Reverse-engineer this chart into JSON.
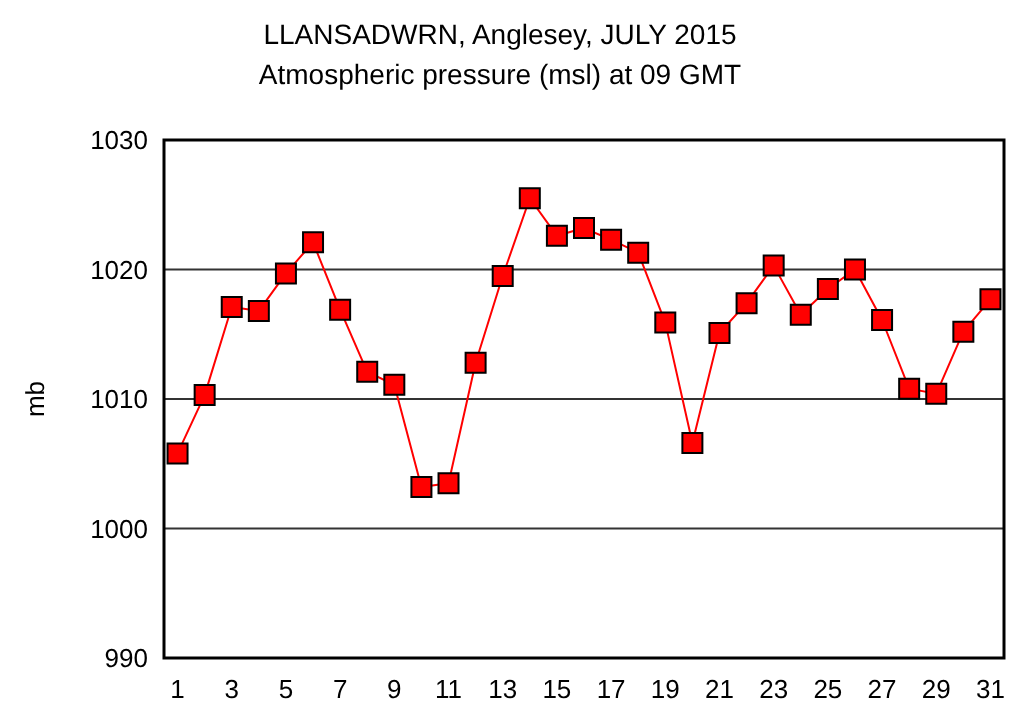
{
  "chart_data": {
    "type": "line",
    "title": "LLANSADWRN, Anglesey,  JULY 2015",
    "subtitle": "Atmospheric pressure  (msl) at 09 GMT",
    "ylabel": "mb",
    "x": [
      1,
      2,
      3,
      4,
      5,
      6,
      7,
      8,
      9,
      10,
      11,
      12,
      13,
      14,
      15,
      16,
      17,
      18,
      19,
      20,
      21,
      22,
      23,
      24,
      25,
      26,
      27,
      28,
      29,
      30,
      31
    ],
    "series": [
      {
        "color": "#ff0000",
        "values": [
          1005.8,
          1010.3,
          1017.1,
          1016.8,
          1019.7,
          1022.1,
          1016.9,
          1012.1,
          1011.1,
          1003.2,
          1003.5,
          1012.8,
          1019.5,
          1025.5,
          1022.6,
          1023.2,
          1022.3,
          1021.3,
          1015.9,
          1006.6,
          1015.1,
          1017.4,
          1020.3,
          1016.5,
          1018.5,
          1020.0,
          1016.1,
          1010.8,
          1010.4,
          1015.2,
          1017.7
        ]
      }
    ],
    "xlim": [
      0.5,
      31.5
    ],
    "xticks": [
      1,
      3,
      5,
      7,
      9,
      11,
      13,
      15,
      17,
      19,
      21,
      23,
      25,
      27,
      29,
      31
    ],
    "ylim": [
      990,
      1030
    ],
    "yticks": [
      990,
      1000,
      1010,
      1020,
      1030
    ],
    "grid": "y",
    "marker": "square",
    "line_style": "solid"
  }
}
